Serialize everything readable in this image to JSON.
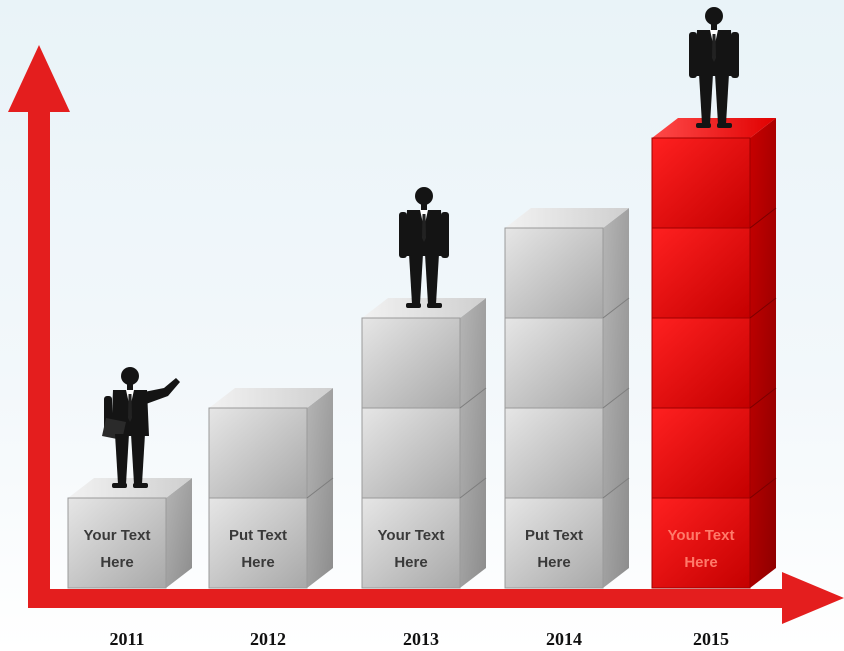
{
  "chart_data": {
    "type": "bar",
    "categories": [
      "2011",
      "2012",
      "2013",
      "2014",
      "2015"
    ],
    "values": [
      1,
      2,
      3,
      4,
      5
    ],
    "box_labels": [
      "Your Text Here",
      "Put Text Here",
      "Your Text Here",
      "Put Text Here",
      "Your Text Here"
    ],
    "highlight_index": 4,
    "has_person": [
      true,
      false,
      true,
      false,
      true
    ],
    "title": "",
    "xlabel": "",
    "ylabel": "",
    "grid": false,
    "colors": {
      "axis": "#e41e1e",
      "cube_front_light": "#d6d6d6",
      "cube_front_dark": "#a9a9a9",
      "cube_top": "#ececec",
      "cube_side": "#9a9a9a",
      "highlight_front": "#e40d0d",
      "highlight_top": "#ff3030",
      "highlight_side": "#b30000",
      "label_dark": "#3a3a3a",
      "label_on_highlight": "#ff7a6a",
      "person": "#141414"
    }
  }
}
